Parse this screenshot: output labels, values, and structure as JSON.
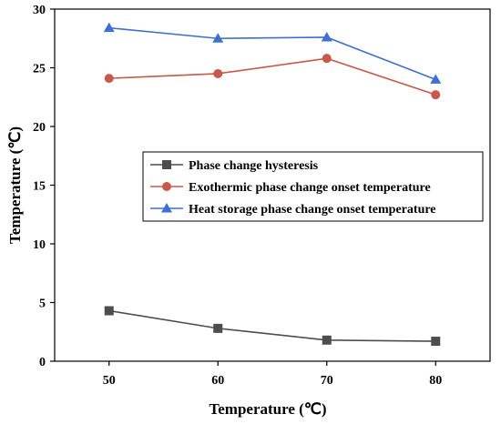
{
  "chart_data": {
    "type": "line",
    "title": "",
    "xlabel": "Temperature (℃)",
    "ylabel": "Temperature (℃)",
    "x": [
      50,
      60,
      70,
      80
    ],
    "xlim": [
      45,
      85
    ],
    "ylim": [
      0,
      30
    ],
    "xticks": [
      "50",
      "60",
      "70",
      "80"
    ],
    "yticks": [
      "0",
      "5",
      "10",
      "15",
      "20",
      "25",
      "30"
    ],
    "grid": false,
    "legend_position": "center-right",
    "series": [
      {
        "name": "Phase change hysteresis",
        "values": [
          4.3,
          2.8,
          1.8,
          1.7
        ],
        "color": "#4d4d4d",
        "marker": "square"
      },
      {
        "name": "Exothermic phase change onset temperature",
        "values": [
          24.1,
          24.5,
          25.8,
          22.7
        ],
        "color": "#c8584a",
        "marker": "circle"
      },
      {
        "name": "Heat storage phase change onset temperature",
        "values": [
          28.4,
          27.5,
          27.6,
          24.0
        ],
        "color": "#3f6fd1",
        "marker": "triangle"
      }
    ]
  }
}
